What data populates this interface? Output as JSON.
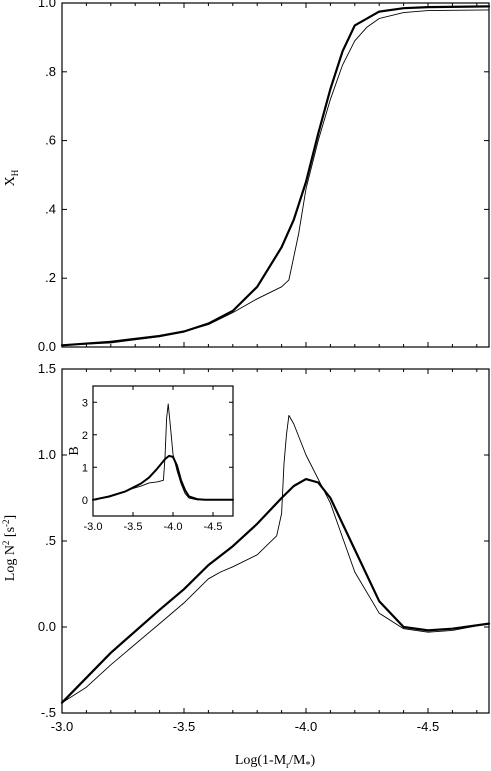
{
  "chart_data": [
    {
      "type": "line",
      "panel": "top",
      "ylabel": "X_H",
      "xlim": [
        -3.0,
        -4.75
      ],
      "ylim": [
        0.0,
        1.0
      ],
      "x_ticks": [
        -3.0,
        -3.5,
        -4.0,
        -4.5
      ],
      "y_ticks": [
        0.0,
        0.2,
        0.4,
        0.6,
        0.8,
        1.0
      ],
      "y_tick_labels": [
        "0.0",
        ".2",
        ".4",
        ".6",
        ".8",
        "1.0"
      ],
      "grid": false,
      "series": [
        {
          "style": "thick",
          "x": [
            -3.0,
            -3.2,
            -3.4,
            -3.5,
            -3.6,
            -3.7,
            -3.8,
            -3.9,
            -3.95,
            -4.0,
            -4.05,
            -4.1,
            -4.15,
            -4.2,
            -4.3,
            -4.4,
            -4.5,
            -4.75
          ],
          "y": [
            0.005,
            0.015,
            0.032,
            0.045,
            0.068,
            0.105,
            0.175,
            0.29,
            0.37,
            0.48,
            0.62,
            0.75,
            0.86,
            0.935,
            0.975,
            0.985,
            0.988,
            0.99
          ]
        },
        {
          "style": "thin",
          "x": [
            -3.0,
            -3.2,
            -3.4,
            -3.5,
            -3.6,
            -3.7,
            -3.8,
            -3.9,
            -3.93,
            -3.97,
            -4.0,
            -4.05,
            -4.1,
            -4.15,
            -4.2,
            -4.25,
            -4.3,
            -4.4,
            -4.5,
            -4.75
          ],
          "y": [
            0.005,
            0.012,
            0.03,
            0.045,
            0.065,
            0.1,
            0.14,
            0.175,
            0.195,
            0.33,
            0.46,
            0.6,
            0.72,
            0.82,
            0.89,
            0.93,
            0.955,
            0.972,
            0.978,
            0.98
          ]
        }
      ]
    },
    {
      "type": "line",
      "panel": "bottom",
      "xlabel": "Log(1-M_r/M_*)",
      "ylabel": "Log N² [s⁻²]",
      "xlim": [
        -3.0,
        -4.75
      ],
      "ylim": [
        -0.5,
        1.5
      ],
      "x_ticks": [
        -3.0,
        -3.5,
        -4.0,
        -4.5
      ],
      "x_tick_labels": [
        "-3.0",
        "-3.5",
        "-4.0",
        "-4.5"
      ],
      "y_ticks": [
        -0.5,
        0.0,
        0.5,
        1.0,
        1.5
      ],
      "y_tick_labels": [
        "-.5",
        "0.0",
        ".5",
        "1.0",
        "1.5"
      ],
      "grid": false,
      "series": [
        {
          "style": "thick",
          "x": [
            -3.0,
            -3.2,
            -3.4,
            -3.5,
            -3.6,
            -3.7,
            -3.8,
            -3.9,
            -3.95,
            -4.0,
            -4.05,
            -4.1,
            -4.2,
            -4.3,
            -4.4,
            -4.5,
            -4.6,
            -4.75
          ],
          "y": [
            -0.44,
            -0.15,
            0.1,
            0.22,
            0.36,
            0.47,
            0.6,
            0.75,
            0.82,
            0.86,
            0.84,
            0.75,
            0.45,
            0.15,
            0.0,
            -0.02,
            -0.01,
            0.02
          ]
        },
        {
          "style": "thin",
          "x": [
            -3.0,
            -3.1,
            -3.2,
            -3.4,
            -3.5,
            -3.6,
            -3.65,
            -3.7,
            -3.8,
            -3.88,
            -3.9,
            -3.91,
            -3.92,
            -3.93,
            -3.95,
            -4.0,
            -4.1,
            -4.2,
            -4.3,
            -4.4,
            -4.5,
            -4.6,
            -4.75
          ],
          "y": [
            -0.44,
            -0.35,
            -0.22,
            0.02,
            0.14,
            0.28,
            0.32,
            0.35,
            0.42,
            0.53,
            0.66,
            0.95,
            1.12,
            1.23,
            1.18,
            1.0,
            0.72,
            0.32,
            0.08,
            -0.01,
            -0.03,
            -0.02,
            0.02
          ]
        }
      ]
    },
    {
      "type": "line",
      "panel": "inset",
      "ylabel": "B",
      "xlim": [
        -3.0,
        -4.75
      ],
      "ylim": [
        -0.5,
        3.5
      ],
      "x_ticks": [
        -3.0,
        -3.5,
        -4.0,
        -4.5
      ],
      "x_tick_labels": [
        "-3.0",
        "-3.5",
        "-4.0",
        "-4.5"
      ],
      "y_ticks": [
        0,
        1,
        2,
        3
      ],
      "y_tick_labels": [
        "0",
        "1",
        "2",
        "3"
      ],
      "grid": false,
      "series": [
        {
          "style": "thick",
          "x": [
            -3.0,
            -3.2,
            -3.4,
            -3.6,
            -3.7,
            -3.8,
            -3.9,
            -3.95,
            -4.0,
            -4.05,
            -4.1,
            -4.15,
            -4.2,
            -4.3,
            -4.4,
            -4.75
          ],
          "y": [
            0.0,
            0.1,
            0.25,
            0.5,
            0.68,
            0.95,
            1.25,
            1.35,
            1.32,
            1.05,
            0.6,
            0.3,
            0.1,
            0.02,
            0.0,
            0.0
          ]
        },
        {
          "style": "thin",
          "x": [
            -3.0,
            -3.2,
            -3.4,
            -3.5,
            -3.6,
            -3.7,
            -3.8,
            -3.88,
            -3.9,
            -3.92,
            -3.94,
            -3.97,
            -4.0,
            -4.05,
            -4.1,
            -4.15,
            -4.2,
            -4.3,
            -4.4,
            -4.75
          ],
          "y": [
            0.0,
            0.08,
            0.25,
            0.35,
            0.42,
            0.52,
            0.55,
            0.6,
            1.3,
            2.5,
            2.95,
            2.2,
            1.4,
            0.9,
            0.5,
            0.2,
            0.05,
            0.0,
            0.0,
            0.0
          ]
        }
      ]
    }
  ]
}
